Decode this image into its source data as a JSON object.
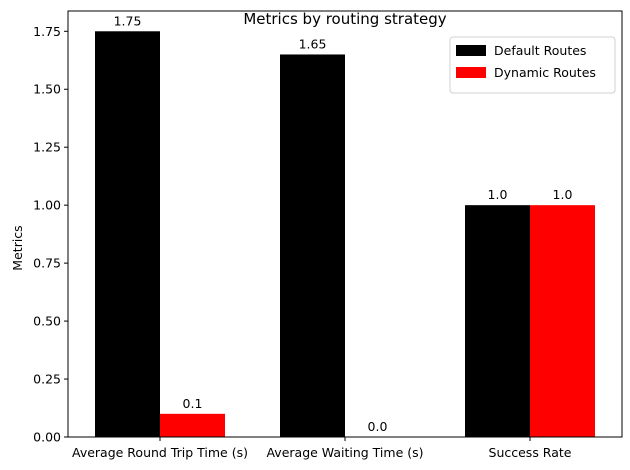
{
  "chart_data": {
    "type": "bar",
    "title": "Metrics by routing strategy",
    "xlabel": "",
    "ylabel": "Metrics",
    "categories": [
      "Average Round Trip Time (s)",
      "Average Waiting Time (s)",
      "Success Rate"
    ],
    "series": [
      {
        "name": "Default Routes",
        "color": "#000000",
        "values": [
          1.75,
          1.65,
          1.0
        ],
        "labels": [
          "1.75",
          "1.65",
          "1.0"
        ]
      },
      {
        "name": "Dynamic Routes",
        "color": "#ff0000",
        "values": [
          0.1,
          0.0,
          1.0
        ],
        "labels": [
          "0.1",
          "0.0",
          "1.0"
        ]
      }
    ],
    "ylim": [
      0,
      1.8375
    ],
    "yticks": [
      0.0,
      0.25,
      0.5,
      0.75,
      1.0,
      1.25,
      1.5,
      1.75
    ],
    "ytick_labels": [
      "0.00",
      "0.25",
      "0.50",
      "0.75",
      "1.00",
      "1.25",
      "1.50",
      "1.75"
    ],
    "grid": false,
    "legend_position": "top-right"
  }
}
